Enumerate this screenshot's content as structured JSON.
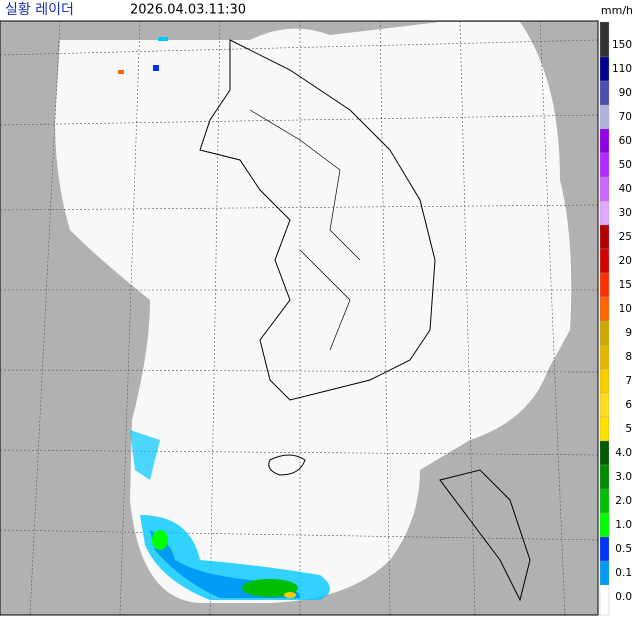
{
  "header": {
    "title": "실황 레이더",
    "time": "2026.04.03.11:30"
  },
  "legend": {
    "unit": "mm/h",
    "items": [
      {
        "label": "150",
        "color": "#333333"
      },
      {
        "label": "110",
        "color": "#000390"
      },
      {
        "label": "90",
        "color": "#4c4eb1"
      },
      {
        "label": "70",
        "color": "#b3b4de"
      },
      {
        "label": "60",
        "color": "#9300e4"
      },
      {
        "label": "50",
        "color": "#b329ff"
      },
      {
        "label": "40",
        "color": "#c969ff"
      },
      {
        "label": "30",
        "color": "#e0a9ff"
      },
      {
        "label": "25",
        "color": "#b40000"
      },
      {
        "label": "20",
        "color": "#d20000"
      },
      {
        "label": "15",
        "color": "#ff3200"
      },
      {
        "label": "10",
        "color": "#ff6600"
      },
      {
        "label": "9",
        "color": "#ccaa00"
      },
      {
        "label": "8",
        "color": "#e0b900"
      },
      {
        "label": "7",
        "color": "#f9cd00"
      },
      {
        "label": "6",
        "color": "#ffdc1f"
      },
      {
        "label": "5",
        "color": "#ffe100"
      },
      {
        "label": "4.0",
        "color": "#005a00"
      },
      {
        "label": "3.0",
        "color": "#008c00"
      },
      {
        "label": "2.0",
        "color": "#00be00"
      },
      {
        "label": "1.0",
        "color": "#00ff00"
      },
      {
        "label": "0.5",
        "color": "#0033f5"
      },
      {
        "label": "0.1",
        "color": "#009bf5"
      },
      {
        "label": "0.0",
        "color": "#ffffff"
      }
    ]
  }
}
